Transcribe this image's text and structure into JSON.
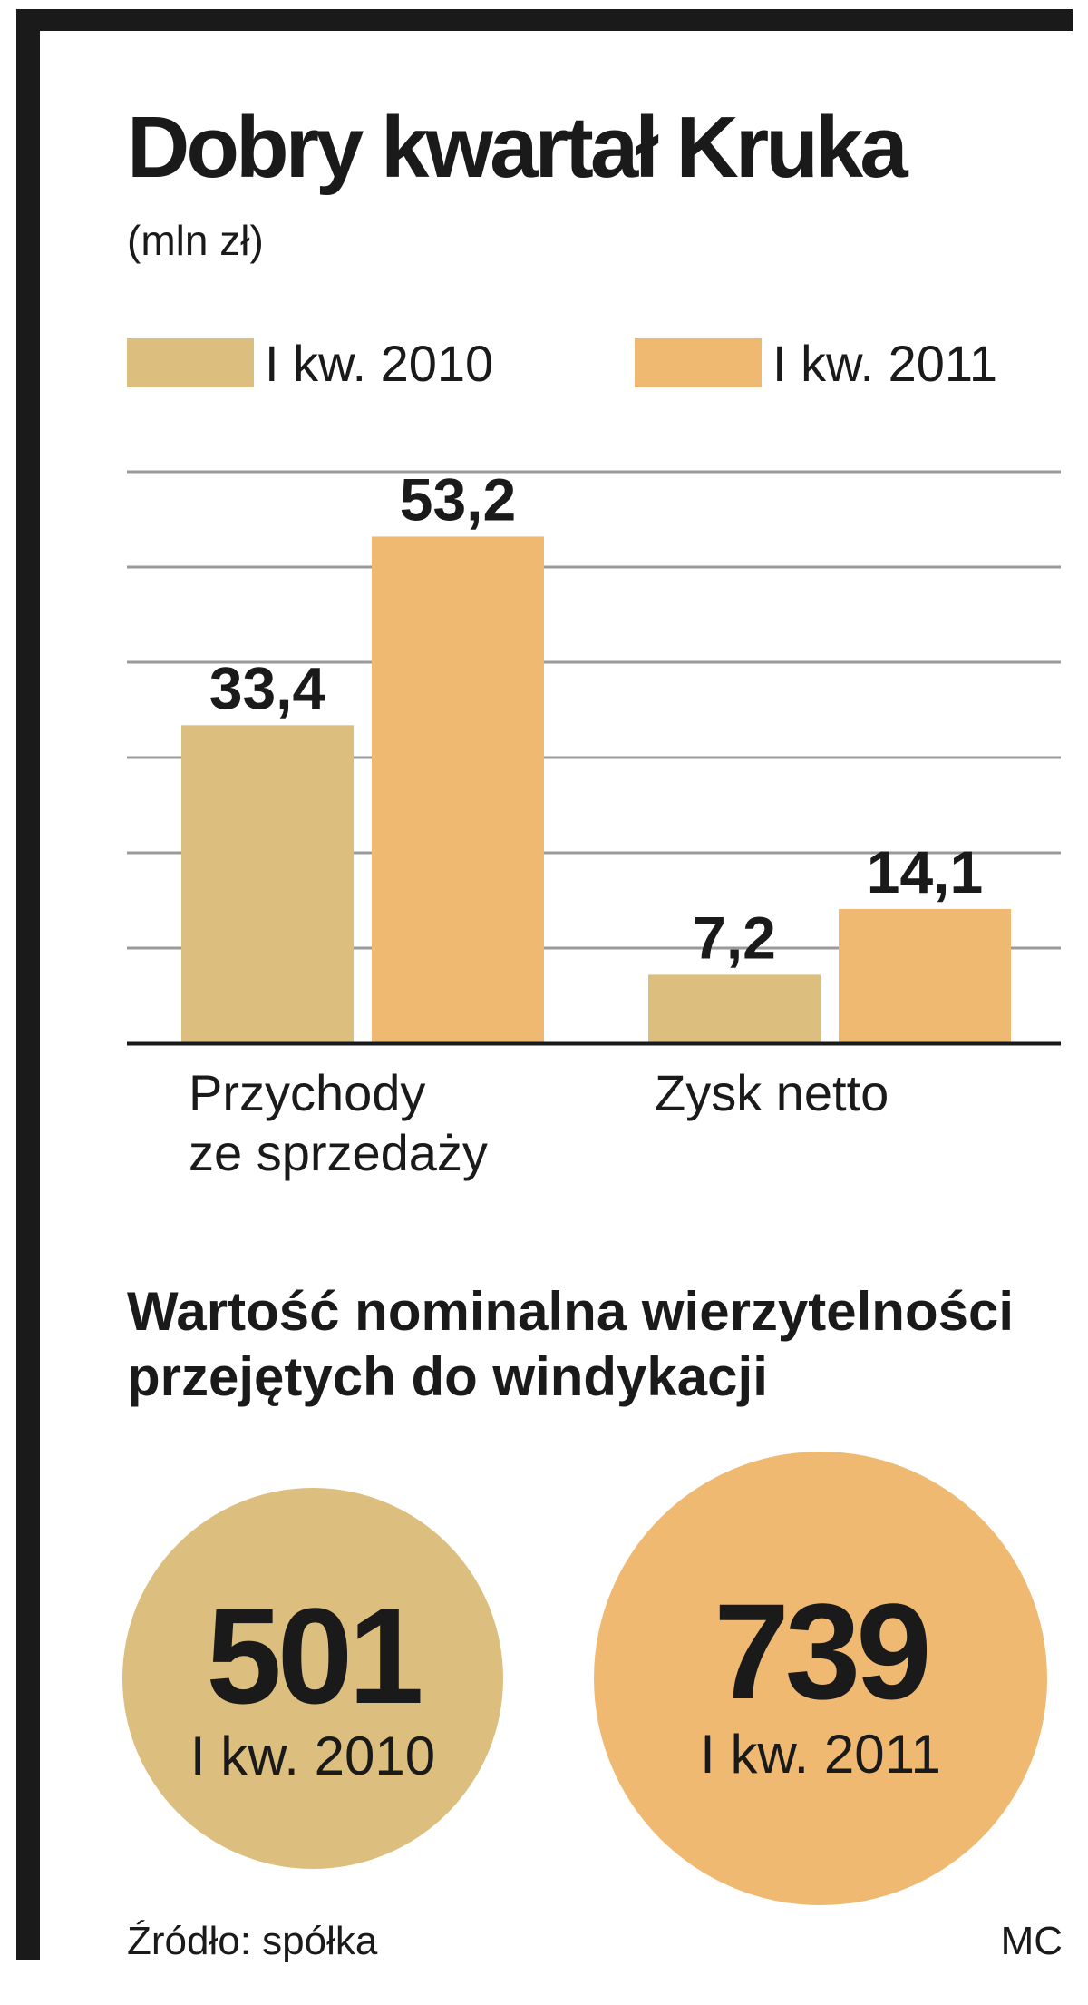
{
  "title": "Dobry kwartał Kruka",
  "subtitle": "(mln zł)",
  "colors": {
    "series_2010": "#dcbf7f",
    "series_2011": "#f0b972",
    "frame": "#1a1a1a",
    "grid": "#9a9a9a"
  },
  "chart_data": {
    "type": "bar",
    "title": "Dobry kwartał Kruka",
    "subtitle": "(mln zł)",
    "categories": [
      "Przychody\nze sprzedaży",
      "Zysk netto"
    ],
    "category_lines": [
      [
        "Przychody",
        "ze sprzedaży"
      ],
      [
        "Zysk netto"
      ]
    ],
    "series": [
      {
        "name": "I kw. 2010",
        "values": [
          33.4,
          7.2
        ],
        "labels": [
          "33,4",
          "7,2"
        ]
      },
      {
        "name": "I kw. 2011",
        "values": [
          53.2,
          14.1
        ],
        "labels": [
          "53,2",
          "14,1"
        ]
      }
    ],
    "ylim": [
      0,
      60
    ],
    "grid": true,
    "legend": "top"
  },
  "bubbles": {
    "title": "Wartość nominalna wierzytelności przejętych do windykacji",
    "items": [
      {
        "value": "501",
        "label": "I kw. 2010"
      },
      {
        "value": "739",
        "label": "I kw. 2011"
      }
    ]
  },
  "source": "Źródło: spółka",
  "credit": "MC"
}
